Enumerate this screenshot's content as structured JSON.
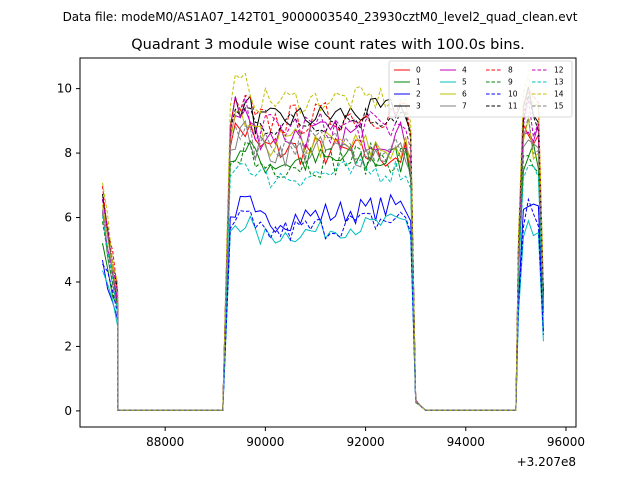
{
  "chart_data": {
    "type": "line",
    "suptitle": "Data file: modeM0/AS1A07_142T01_9000003540_23930cztM0_level2_quad_clean.evt",
    "title": "Quadrant 3 module wise count rates with 100.0s bins.",
    "xlabel": "",
    "ylabel": "",
    "x_offset_label": "+3.207e8",
    "xlim": [
      86300,
      96200
    ],
    "ylim": [
      -0.5,
      10.95
    ],
    "x_ticks": [
      88000,
      90000,
      92000,
      94000,
      96000
    ],
    "x_tick_labels": [
      "88000",
      "90000",
      "92000",
      "94000",
      "96000"
    ],
    "y_ticks": [
      0,
      2,
      4,
      6,
      8,
      10
    ],
    "y_tick_labels": [
      "0",
      "2",
      "4",
      "6",
      "8",
      "10"
    ],
    "grid": false,
    "legend_position": "top-right",
    "legend_columns": 4,
    "segments": [
      {
        "x0": 86750,
        "dx": 100,
        "n": 4
      },
      {
        "x0": 87050,
        "dx": 100,
        "n": 22
      },
      {
        "x0": 89200,
        "dx": 100,
        "n": 38
      },
      {
        "x0": 93000,
        "dx": 100,
        "n": 21
      },
      {
        "x0": 95050,
        "dx": 100,
        "n": 6
      }
    ],
    "series": [
      {
        "name": "0",
        "color": "#ff0000",
        "dash": false,
        "base": [
          6.4,
          4.0,
          3.4,
          0.02,
          8.2,
          7.9,
          0.02,
          8.5
        ],
        "noise": 0.5
      },
      {
        "name": "1",
        "color": "#008000",
        "dash": false,
        "base": [
          5.2,
          3.5,
          3.0,
          0.02,
          7.7,
          7.8,
          0.02,
          7.8
        ],
        "noise": 0.5
      },
      {
        "name": "2",
        "color": "#0000ff",
        "dash": false,
        "base": [
          4.6,
          3.2,
          2.8,
          0.02,
          5.8,
          6.4,
          0.02,
          6.2
        ],
        "noise": 0.4
      },
      {
        "name": "3",
        "color": "#000000",
        "dash": false,
        "base": [
          6.6,
          4.1,
          3.6,
          0.02,
          8.9,
          9.4,
          0.02,
          9.2
        ],
        "noise": 0.4
      },
      {
        "name": "4",
        "color": "#bf00bf",
        "dash": false,
        "base": [
          6.2,
          3.9,
          3.3,
          0.02,
          8.6,
          8.5,
          0.02,
          8.4
        ],
        "noise": 0.5
      },
      {
        "name": "5",
        "color": "#00bfbf",
        "dash": false,
        "base": [
          4.4,
          3.0,
          2.7,
          0.02,
          5.3,
          5.9,
          0.02,
          5.4
        ],
        "noise": 0.3
      },
      {
        "name": "6",
        "color": "#bfbf00",
        "dash": false,
        "base": [
          6.3,
          3.9,
          3.3,
          0.02,
          8.4,
          8.1,
          0.02,
          8.2
        ],
        "noise": 0.5
      },
      {
        "name": "7",
        "color": "#808080",
        "dash": false,
        "base": [
          6.0,
          3.8,
          3.2,
          0.02,
          8.1,
          8.0,
          0.02,
          8.0
        ],
        "noise": 0.5
      },
      {
        "name": "8",
        "color": "#ff0000",
        "dash": true,
        "base": [
          6.8,
          4.2,
          3.7,
          0.02,
          8.9,
          9.3,
          0.02,
          9.3
        ],
        "noise": 0.5
      },
      {
        "name": "9",
        "color": "#008000",
        "dash": true,
        "base": [
          5.6,
          3.6,
          3.1,
          0.02,
          7.6,
          7.9,
          0.02,
          7.6
        ],
        "noise": 0.5
      },
      {
        "name": "10",
        "color": "#0000ff",
        "dash": true,
        "base": [
          4.7,
          3.3,
          2.9,
          0.02,
          5.4,
          6.0,
          0.02,
          5.9
        ],
        "noise": 0.4
      },
      {
        "name": "11",
        "color": "#000000",
        "dash": true,
        "base": [
          6.7,
          4.1,
          3.5,
          0.02,
          8.8,
          9.2,
          0.02,
          9.0
        ],
        "noise": 0.4
      },
      {
        "name": "12",
        "color": "#bf00bf",
        "dash": true,
        "base": [
          6.5,
          4.0,
          3.4,
          0.02,
          8.8,
          8.8,
          0.02,
          8.7
        ],
        "noise": 0.5
      },
      {
        "name": "13",
        "color": "#00bfbf",
        "dash": true,
        "base": [
          5.8,
          3.7,
          3.2,
          0.02,
          7.2,
          7.5,
          0.02,
          7.4
        ],
        "noise": 0.4
      },
      {
        "name": "14",
        "color": "#bfbf00",
        "dash": true,
        "base": [
          7.0,
          4.3,
          3.8,
          0.02,
          9.6,
          9.7,
          0.02,
          9.8
        ],
        "noise": 0.4
      },
      {
        "name": "15",
        "color": "#808080",
        "dash": true,
        "base": [
          6.3,
          3.9,
          3.3,
          0.02,
          8.3,
          8.3,
          0.02,
          8.3
        ],
        "noise": 0.5
      }
    ]
  }
}
